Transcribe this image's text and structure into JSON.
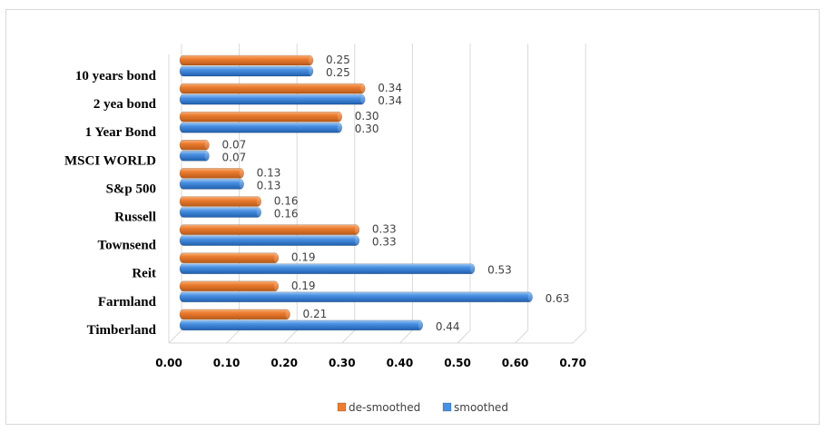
{
  "chart_data": {
    "type": "bar",
    "orientation": "horizontal",
    "style": "3d-cylinder",
    "categories": [
      "10 years bond",
      "2 yea bond",
      "1 Year Bond",
      "MSCI WORLD",
      "S&p 500",
      "Russell",
      "Townsend",
      "Reit",
      "Farmland",
      "Timberland"
    ],
    "series": [
      {
        "name": "de-smoothed",
        "color": "#ED7D31",
        "values": [
          0.25,
          0.34,
          0.3,
          0.07,
          0.13,
          0.16,
          0.33,
          0.19,
          0.19,
          0.21
        ]
      },
      {
        "name": "smoothed",
        "color": "#4A90E2",
        "values": [
          0.25,
          0.34,
          0.3,
          0.07,
          0.13,
          0.16,
          0.33,
          0.53,
          0.63,
          0.44
        ]
      }
    ],
    "value_labels": [
      [
        "0.25",
        "0.34",
        "0.30",
        "0.07",
        "0.13",
        "0.16",
        "0.33",
        "0.19",
        "0.19",
        "0.21"
      ],
      [
        "0.25",
        "0.34",
        "0.30",
        "0.07",
        "0.13",
        "0.16",
        "0.33",
        "0.53",
        "0.63",
        "0.44"
      ]
    ],
    "x_ticks": [
      "0.00",
      "0.10",
      "0.20",
      "0.30",
      "0.40",
      "0.50",
      "0.60",
      "0.70"
    ],
    "xlim": [
      0,
      0.7
    ],
    "grid": "vertical",
    "legend_position": "bottom",
    "title": "",
    "xlabel": "",
    "ylabel": ""
  }
}
